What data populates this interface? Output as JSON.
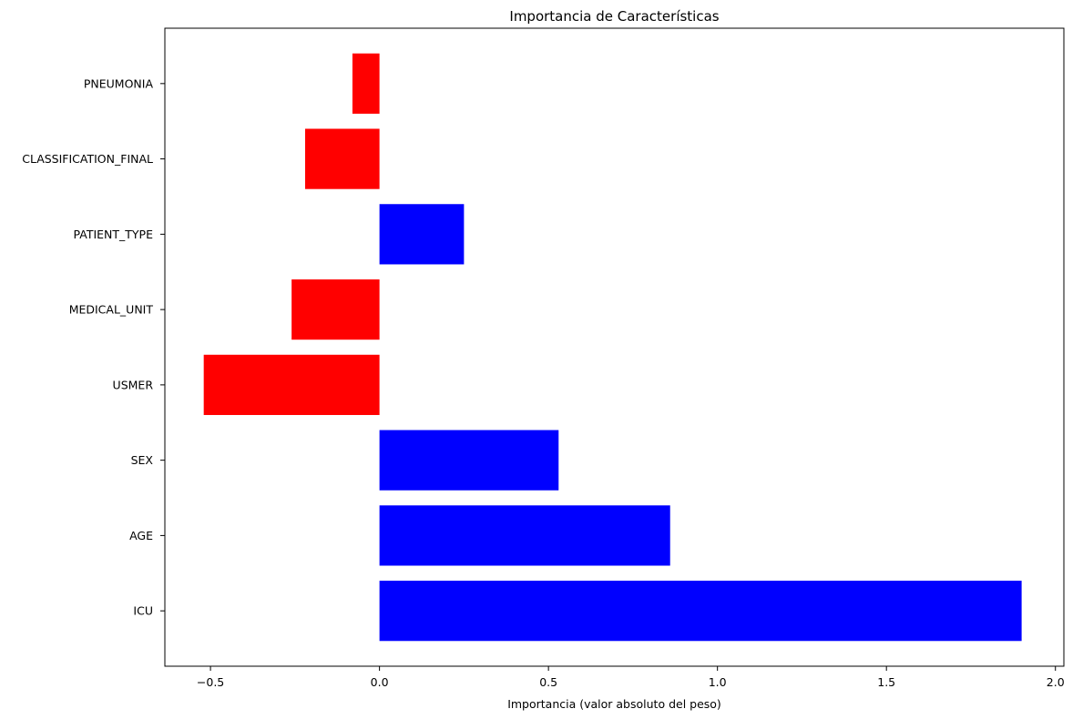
{
  "chart_data": {
    "type": "bar",
    "orientation": "horizontal",
    "title": "Importancia de Características",
    "xlabel": "Importancia (valor absoluto del peso)",
    "ylabel": "",
    "xlim": [
      -0.635,
      2.025
    ],
    "xticks": [
      -0.5,
      0.0,
      0.5,
      1.0,
      1.5,
      2.0
    ],
    "xtick_labels": [
      "−0.5",
      "0.0",
      "0.5",
      "1.0",
      "1.5",
      "2.0"
    ],
    "categories": [
      "ICU",
      "AGE",
      "SEX",
      "USMER",
      "MEDICAL_UNIT",
      "PATIENT_TYPE",
      "CLASSIFICATION_FINAL",
      "PNEUMONIA"
    ],
    "values": [
      1.9,
      0.86,
      0.53,
      -0.52,
      -0.26,
      0.25,
      -0.22,
      -0.08
    ],
    "colors": {
      "positive": "#0000ff",
      "negative": "#ff0000"
    },
    "grid": false,
    "legend": null
  }
}
